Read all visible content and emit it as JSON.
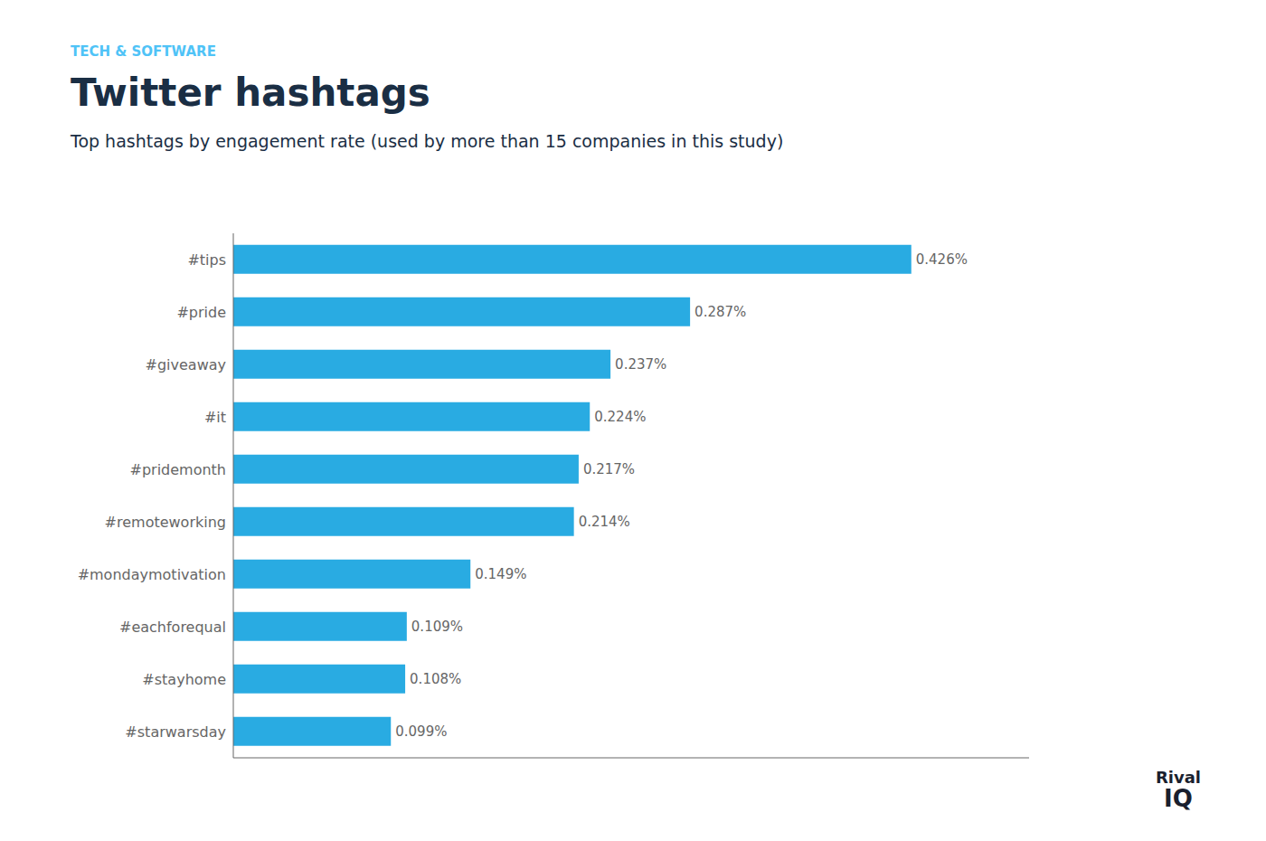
{
  "chart_data": {
    "type": "bar",
    "orientation": "horizontal",
    "title": "Twitter hashtags",
    "subtitle": "Top hashtags by engagement rate (used by more than 15 companies in this study)",
    "annotations": [
      "TECH & SOFTWARE",
      "Rival",
      "IQ"
    ],
    "categories": [
      "#tips",
      "#pride",
      "#giveaway",
      "#it",
      "#pridemonth",
      "#remoteworking",
      "#mondaymotivation",
      "#eachforequal",
      "#stayhome",
      "#starwarsday"
    ],
    "values": [
      0.426,
      0.287,
      0.237,
      0.224,
      0.217,
      0.214,
      0.149,
      0.109,
      0.108,
      0.099
    ],
    "value_labels": [
      "0.426%",
      "0.287%",
      "0.237%",
      "0.224%",
      "0.217%",
      "0.214%",
      "0.149%",
      "0.109%",
      "0.108%",
      "0.099%"
    ],
    "color": "#29ABE2",
    "xlim": [
      0,
      0.5
    ],
    "xticks": [],
    "grid": false,
    "data_labels": true,
    "tick_labels": "y"
  }
}
